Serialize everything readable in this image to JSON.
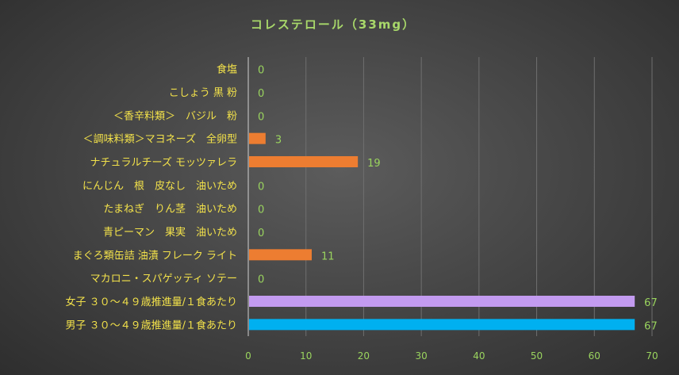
{
  "chart_data": {
    "type": "bar",
    "orientation": "horizontal",
    "title": "コレステロール（33mg）",
    "categories": [
      "食塩",
      "こしょう 黒 粉",
      "＜香辛料類＞　バジル　粉",
      "＜調味料類＞マヨネーズ　全卵型",
      "ナチュラルチーズ モッツァレラ",
      "にんじん　根　皮なし　油いため",
      "たまねぎ　りん茎　油いため",
      "青ピーマン　果実　油いため",
      "まぐろ類缶詰 油漬 フレーク ライト",
      "マカロニ・スパゲッティ ソテー",
      "女子 ３０～４９歳推進量/１食あたり",
      "男子 ３０～４９歳推進量/１食あたり"
    ],
    "values": [
      0,
      0,
      0,
      3,
      19,
      0,
      0,
      0,
      11,
      0,
      67,
      67
    ],
    "data_labels": [
      "0",
      "0",
      "0",
      "3",
      "19",
      "0",
      "0",
      "0",
      "11",
      "0",
      "67",
      "67"
    ],
    "xlim": [
      0,
      70
    ],
    "x_ticks": [
      "0",
      "10",
      "20",
      "30",
      "40",
      "50",
      "60",
      "70"
    ],
    "grid": true,
    "bar_colors": [
      "#ed7d31",
      "#ed7d31",
      "#ed7d31",
      "#ed7d31",
      "#ed7d31",
      "#ed7d31",
      "#ed7d31",
      "#ed7d31",
      "#ed7d31",
      "#ed7d31",
      "#c39bf0",
      "#00b0f0"
    ]
  }
}
